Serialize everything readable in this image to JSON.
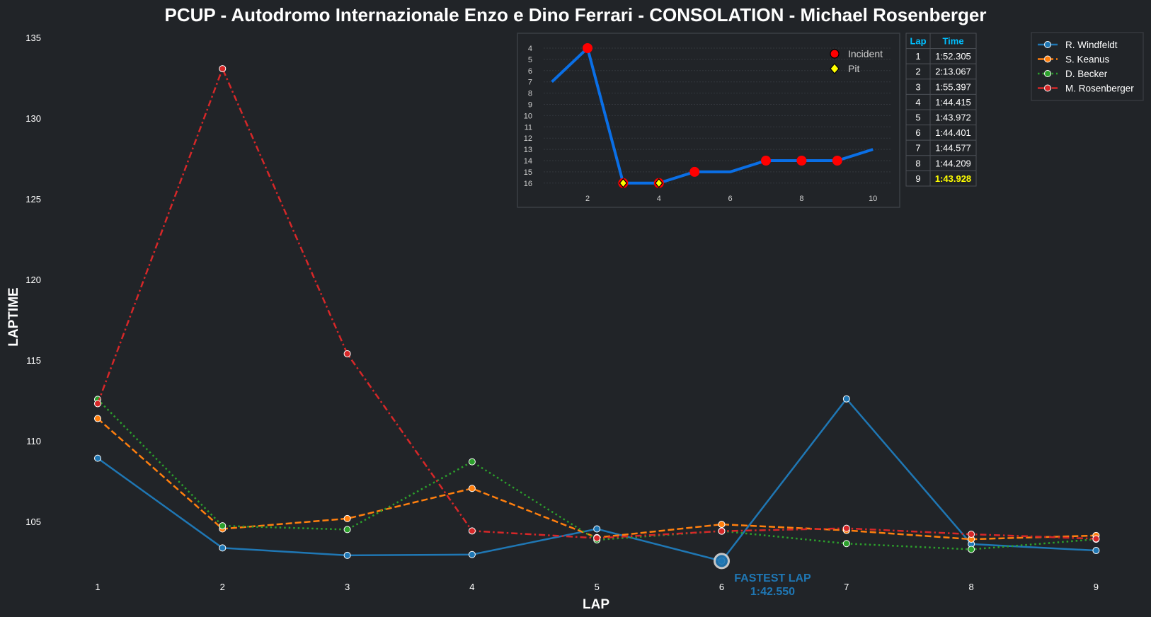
{
  "chart_data": [
    {
      "type": "line",
      "title": "PCUP - Autodromo Internazionale Enzo e Dino Ferrari - CONSOLATION - Michael Rosenberger",
      "xlabel": "LAP",
      "ylabel": "LAPTIME",
      "x": [
        1,
        2,
        3,
        4,
        5,
        6,
        7,
        8,
        9
      ],
      "xticks": [
        "1",
        "2",
        "3",
        "4",
        "5",
        "6",
        "7",
        "8",
        "9"
      ],
      "yticks": [
        "105",
        "110",
        "115",
        "120",
        "125",
        "130",
        "135"
      ],
      "ylim": [
        101,
        135
      ],
      "grid": false,
      "legend_position": "top-right",
      "series": [
        {
          "name": "R. Windfeldt",
          "color": "#1f77b4",
          "dash": "solid",
          "values": [
            108.92,
            103.36,
            102.9,
            102.95,
            104.54,
            102.55,
            112.6,
            103.6,
            103.2
          ]
        },
        {
          "name": "S. Keanus",
          "color": "#ff7f0e",
          "dash": "dashed",
          "values": [
            111.38,
            104.54,
            105.18,
            107.05,
            104.0,
            104.82,
            104.45,
            103.9,
            104.13
          ]
        },
        {
          "name": "D. Becker",
          "color": "#2ca02c",
          "dash": "dotted",
          "values": [
            112.57,
            104.73,
            104.5,
            108.7,
            103.86,
            104.41,
            103.63,
            103.27,
            103.9
          ]
        },
        {
          "name": "M. Rosenberger",
          "color": "#d62728",
          "dash": "dashdot",
          "values": [
            112.305,
            133.067,
            115.397,
            104.415,
            103.972,
            104.401,
            104.577,
            104.209,
            103.928
          ]
        }
      ],
      "annotation": {
        "label": "FASTEST LAP",
        "value": "1:42.550",
        "lap": 6,
        "laptime": 102.55
      }
    },
    {
      "type": "line",
      "title": "",
      "x": [
        1,
        2,
        3,
        4,
        5,
        6,
        7,
        8,
        9,
        10
      ],
      "values": [
        7,
        4,
        16,
        16,
        15,
        15,
        14,
        14,
        14,
        13
      ],
      "xticks": [
        "2",
        "4",
        "6",
        "8",
        "10"
      ],
      "yticks": [
        "4",
        "5",
        "6",
        "7",
        "8",
        "9",
        "10",
        "11",
        "12",
        "13",
        "14",
        "15",
        "16"
      ],
      "ylim": [
        16,
        4
      ],
      "color": "#0a6fe6",
      "incident_laps": [
        2,
        3,
        4,
        5,
        7,
        8,
        9
      ],
      "pit_laps": [
        3,
        4
      ],
      "legend": [
        "Incident",
        "Pit"
      ],
      "legend_position": "top-right"
    }
  ],
  "lap_table": {
    "headers": [
      "Lap",
      "Time"
    ],
    "rows": [
      [
        "1",
        "1:52.305"
      ],
      [
        "2",
        "2:13.067"
      ],
      [
        "3",
        "1:55.397"
      ],
      [
        "4",
        "1:44.415"
      ],
      [
        "5",
        "1:43.972"
      ],
      [
        "6",
        "1:44.401"
      ],
      [
        "7",
        "1:44.577"
      ],
      [
        "8",
        "1:44.209"
      ],
      [
        "9",
        "1:43.928"
      ]
    ],
    "best_row": 8,
    "header_color": "#00bfff",
    "best_color": "#ffff00"
  }
}
